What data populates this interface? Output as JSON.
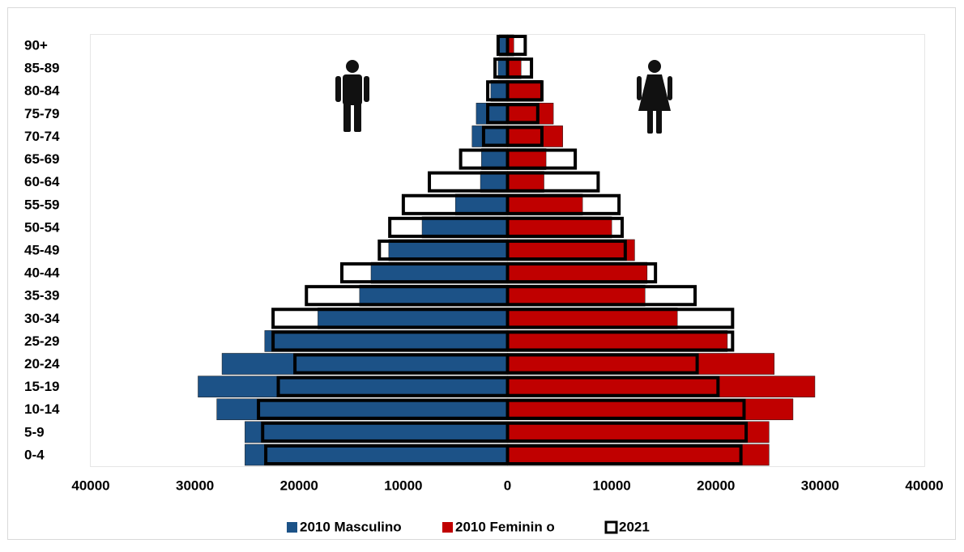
{
  "chart_data": {
    "type": "pyramid",
    "categories": [
      "0-4",
      "5-9",
      "10-14",
      "15-19",
      "20-24",
      "25-29",
      "30-34",
      "35-39",
      "40-44",
      "45-49",
      "50-54",
      "55-59",
      "60-64",
      "65-69",
      "70-74",
      "75-79",
      "80-84",
      "85-89",
      "90+"
    ],
    "series": [
      {
        "name": "2010 Masculino",
        "color": "#1c5287",
        "values": [
          -25200,
          -25200,
          -27900,
          -29700,
          -27400,
          -23300,
          -18200,
          -14200,
          -13100,
          -11400,
          -8200,
          -5000,
          -2600,
          -2500,
          -3400,
          -3000,
          -1600,
          -900,
          -800
        ]
      },
      {
        "name": "2010 Feminin o",
        "color": "#c00000",
        "values": [
          25100,
          25100,
          27400,
          29500,
          25600,
          21100,
          16300,
          13200,
          13400,
          12200,
          10000,
          7200,
          3500,
          3700,
          5300,
          4400,
          3300,
          1300,
          600
        ]
      },
      {
        "name": "2021",
        "color": "#ffffff",
        "values": [
          [
            -23200,
            22400
          ],
          [
            -23500,
            22900
          ],
          [
            -23900,
            22700
          ],
          [
            -22000,
            20200
          ],
          [
            -20400,
            18200
          ],
          [
            -22500,
            21600
          ],
          [
            -22500,
            21600
          ],
          [
            -19300,
            18000
          ],
          [
            -15900,
            14200
          ],
          [
            -12300,
            11300
          ],
          [
            -11300,
            11000
          ],
          [
            -10000,
            10700
          ],
          [
            -7500,
            8700
          ],
          [
            -4500,
            6500
          ],
          [
            -2300,
            3300
          ],
          [
            -1900,
            2900
          ],
          [
            -1900,
            3300
          ],
          [
            -1200,
            2300
          ],
          [
            -900,
            1700
          ]
        ]
      }
    ],
    "xlim": [
      -40000,
      40000
    ],
    "xticks": [
      {
        "value": -40000,
        "label": "40000"
      },
      {
        "value": -30000,
        "label": "30000"
      },
      {
        "value": -20000,
        "label": "20000"
      },
      {
        "value": -10000,
        "label": "10000"
      },
      0,
      10000,
      20000,
      30000,
      40000
    ]
  }
}
